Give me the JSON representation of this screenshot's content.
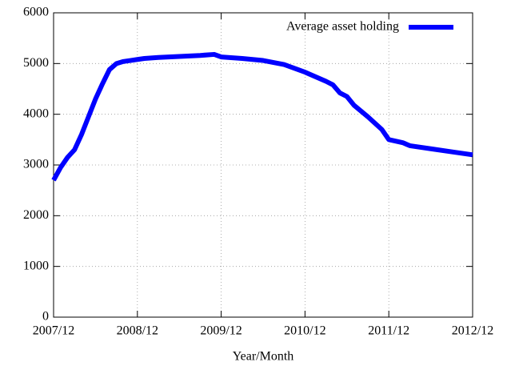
{
  "chart_data": {
    "type": "line",
    "x_label": "Year/Month",
    "x": [
      "2007/12",
      "2008/01",
      "2008/02",
      "2008/03",
      "2008/04",
      "2008/05",
      "2008/06",
      "2008/07",
      "2008/08",
      "2008/09",
      "2008/10",
      "2008/11",
      "2008/12",
      "2009/01",
      "2009/03",
      "2009/06",
      "2009/09",
      "2009/11",
      "2009/12",
      "2010/03",
      "2010/06",
      "2010/09",
      "2010/12",
      "2011/03",
      "2011/04",
      "2011/05",
      "2011/06",
      "2011/07",
      "2011/09",
      "2011/11",
      "2011/12",
      "2012/02",
      "2012/03",
      "2012/06",
      "2012/09",
      "2012/12"
    ],
    "series": [
      {
        "name": "Average asset holding",
        "color": "#0000ff",
        "values": [
          2700,
          2950,
          3150,
          3300,
          3600,
          3950,
          4300,
          4600,
          4880,
          5000,
          5040,
          5060,
          5080,
          5100,
          5120,
          5140,
          5160,
          5180,
          5130,
          5100,
          5060,
          4980,
          4830,
          4650,
          4580,
          4420,
          4350,
          4180,
          3950,
          3700,
          3500,
          3440,
          3380,
          3320,
          3260,
          3200
        ]
      }
    ],
    "xlim": [
      "2007/12",
      "2012/12"
    ],
    "xticks": [
      "2007/12",
      "2008/12",
      "2009/12",
      "2010/12",
      "2011/12",
      "2012/12"
    ],
    "ylim": [
      0,
      6000
    ],
    "yticks": [
      0,
      1000,
      2000,
      3000,
      4000,
      5000,
      6000
    ],
    "grid": true,
    "legend": "top-right"
  }
}
